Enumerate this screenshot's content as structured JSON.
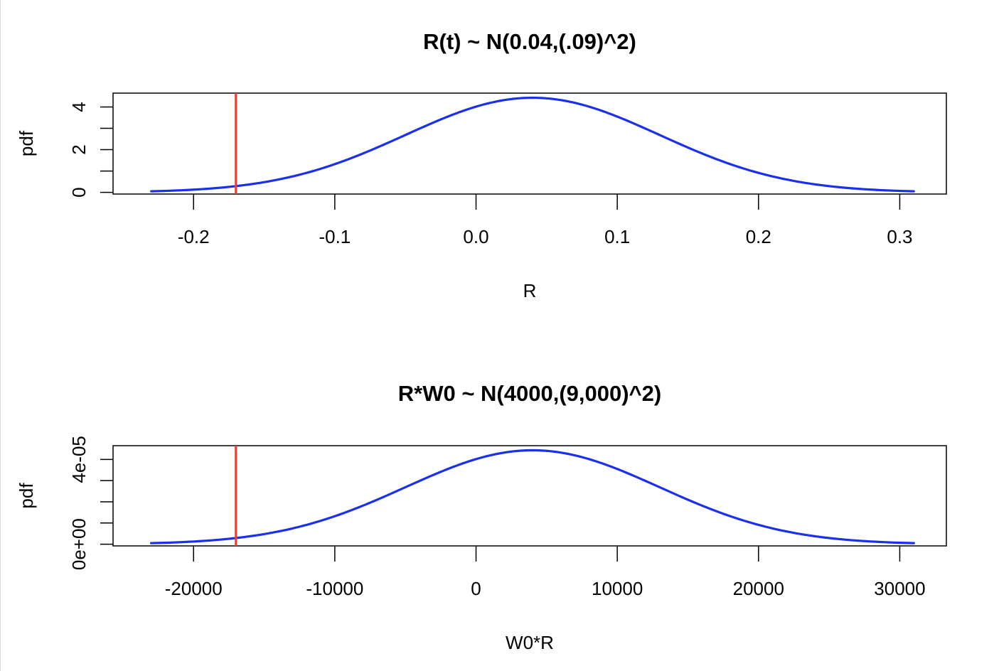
{
  "colors": {
    "curve": "#1a2ff0",
    "marker": "#e8402c",
    "axis": "#000000"
  },
  "chart_data": [
    {
      "type": "line",
      "title": "R(t) ~ N(0.04,(.09)^2)",
      "xlabel": "R",
      "ylabel": "pdf",
      "xlim": [
        -0.257,
        0.333
      ],
      "ylim": [
        -0.08,
        4.65
      ],
      "x_ticks": [
        -0.2,
        -0.1,
        0.0,
        0.1,
        0.2,
        0.3
      ],
      "x_tick_labels": [
        "-0.2",
        "-0.1",
        "0.0",
        "0.1",
        "0.2",
        "0.3"
      ],
      "y_ticks": [
        0,
        1,
        2,
        3,
        4
      ],
      "y_tick_labels": [
        "0",
        "",
        "2",
        "",
        "4"
      ],
      "series": [
        {
          "distribution": "normal",
          "mean": 0.04,
          "sd": 0.09,
          "x_range": [
            -0.23,
            0.31
          ]
        }
      ],
      "vline": {
        "x": -0.17
      },
      "grid": false
    },
    {
      "type": "line",
      "title": "R*W0 ~ N(4000,(9,000)^2)",
      "xlabel": "W0*R",
      "ylabel": "pdf",
      "xlim": [
        -25700,
        33300
      ],
      "ylim": [
        -8e-07,
        4.65e-05
      ],
      "x_ticks": [
        -20000,
        -10000,
        0,
        10000,
        20000,
        30000
      ],
      "x_tick_labels": [
        "-20000",
        "-10000",
        "0",
        "10000",
        "20000",
        "30000"
      ],
      "y_ticks": [
        0,
        1e-05,
        2e-05,
        3e-05,
        4e-05
      ],
      "y_tick_labels": [
        "0e+00",
        "",
        "",
        "",
        "4e-05"
      ],
      "series": [
        {
          "distribution": "normal",
          "mean": 4000,
          "sd": 9000,
          "x_range": [
            -23000,
            31000
          ]
        }
      ],
      "vline": {
        "x": -17000
      },
      "grid": false
    }
  ]
}
